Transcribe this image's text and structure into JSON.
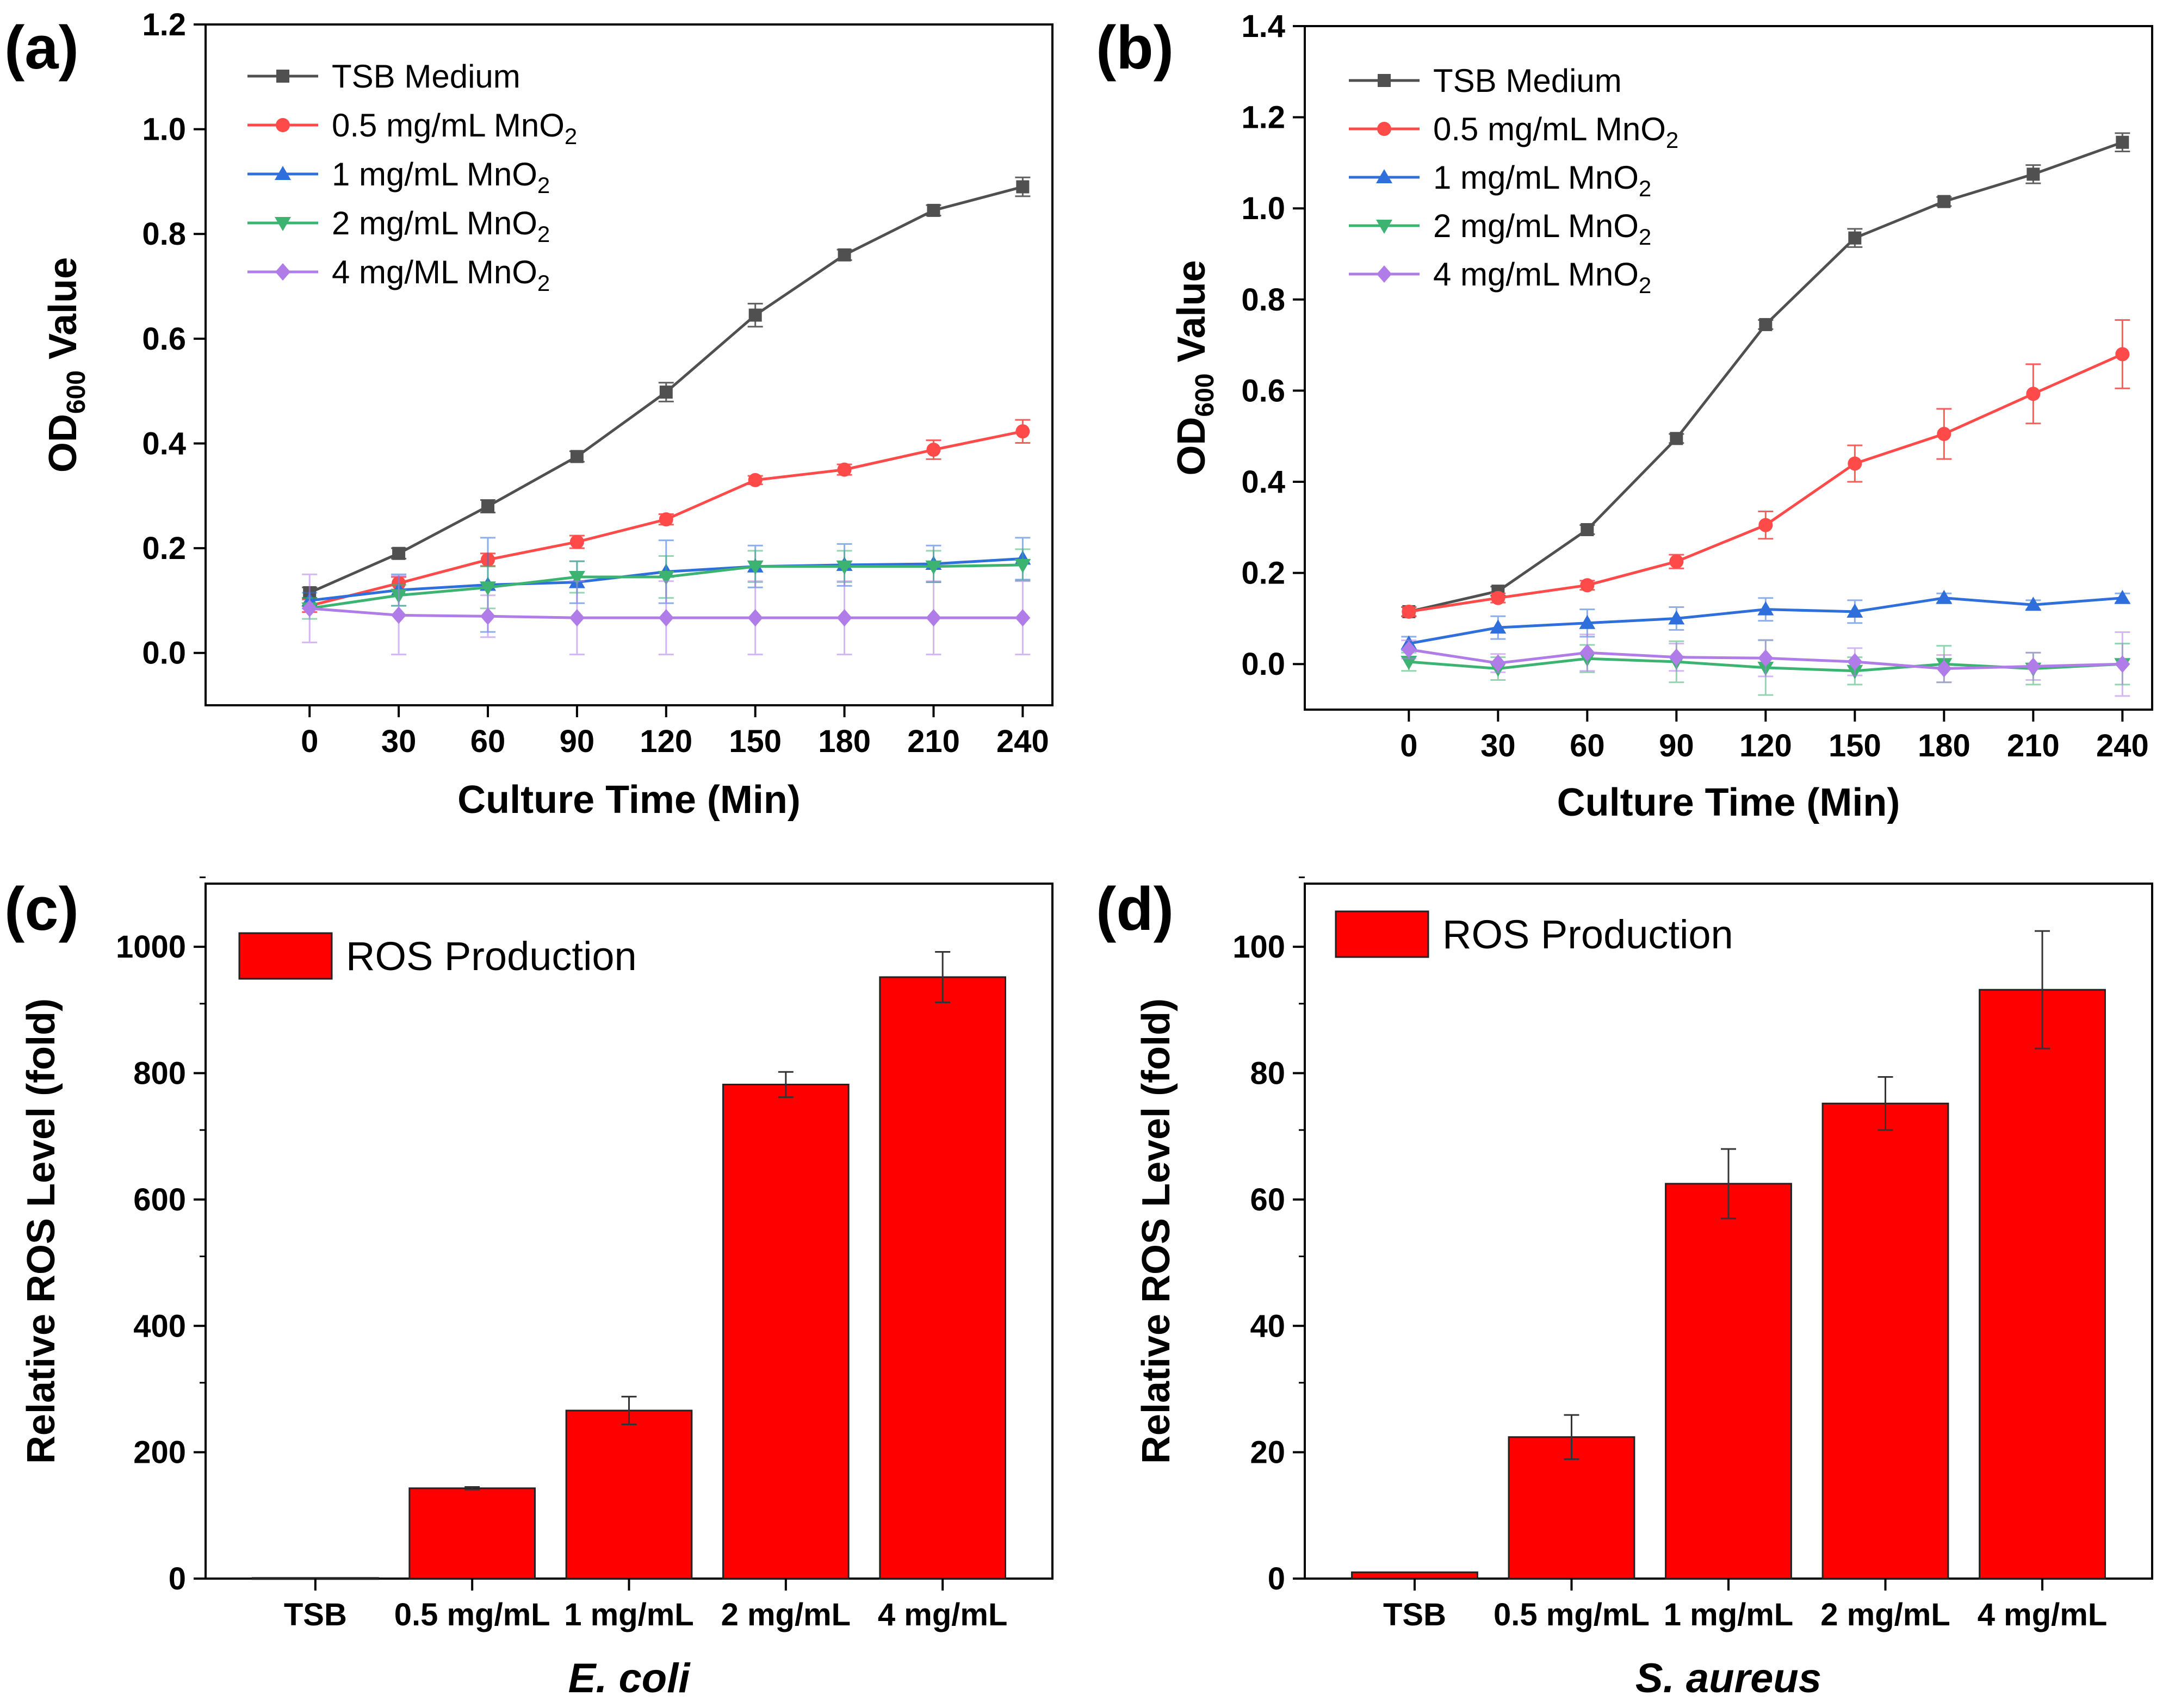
{
  "figure": {
    "panel_labels": [
      "(a)",
      "(b)",
      "(c)",
      "(d)"
    ]
  },
  "chart_data": [
    {
      "panel": "(a)",
      "type": "line",
      "xlabel": "Culture Time (Min)",
      "ylabel_main": "OD",
      "ylabel_sub": "600",
      "ylabel_tail": " Value",
      "x": [
        0,
        30,
        60,
        90,
        120,
        150,
        180,
        210,
        240
      ],
      "xlim": [
        -35,
        250
      ],
      "ylim": [
        -0.1,
        1.2
      ],
      "yticks": [
        0.0,
        0.2,
        0.4,
        0.6,
        0.8,
        1.0,
        1.2
      ],
      "ytick_labels": [
        "0.0",
        "0.2",
        "0.4",
        "0.6",
        "0.8",
        "1.0",
        "1.2"
      ],
      "legend_position": "top-left",
      "series": [
        {
          "legend_main": "TSB Medium",
          "legend_sub": "",
          "color": "#505050",
          "marker": "square",
          "values": [
            0.115,
            0.19,
            0.28,
            0.375,
            0.498,
            0.645,
            0.76,
            0.845,
            0.89
          ],
          "errors": [
            0.01,
            0.01,
            0.012,
            0.01,
            0.018,
            0.022,
            0.01,
            0.01,
            0.018
          ]
        },
        {
          "legend_main": "0.5 mg/mL MnO",
          "legend_sub": "2",
          "color": "#ff4a4a",
          "marker": "circle",
          "values": [
            0.09,
            0.133,
            0.178,
            0.212,
            0.255,
            0.33,
            0.35,
            0.388,
            0.423
          ],
          "errors": [
            0.012,
            0.012,
            0.012,
            0.012,
            0.01,
            0.008,
            0.01,
            0.018,
            0.022
          ]
        },
        {
          "legend_main": "1 mg/mL MnO",
          "legend_sub": "2",
          "color": "#2f6fdc",
          "marker": "triangle-up",
          "values": [
            0.1,
            0.12,
            0.13,
            0.135,
            0.155,
            0.165,
            0.168,
            0.17,
            0.18
          ],
          "errors": [
            0.015,
            0.03,
            0.09,
            0.04,
            0.06,
            0.04,
            0.04,
            0.035,
            0.04
          ]
        },
        {
          "legend_main": "2 mg/mL MnO",
          "legend_sub": "2",
          "color": "#3cb371",
          "marker": "triangle-down",
          "values": [
            0.085,
            0.11,
            0.125,
            0.145,
            0.145,
            0.165,
            0.165,
            0.165,
            0.168
          ],
          "errors": [
            0.02,
            0.02,
            0.04,
            0.03,
            0.04,
            0.03,
            0.03,
            0.03,
            0.03
          ]
        },
        {
          "legend_main": "4 mg/ML MnO",
          "legend_sub": "2",
          "color": "#b07de8",
          "marker": "diamond",
          "values": [
            0.085,
            0.072,
            0.07,
            0.067,
            0.067,
            0.067,
            0.067,
            0.067,
            0.067
          ],
          "errors": [
            0.065,
            0.075,
            0.04,
            0.07,
            0.07,
            0.07,
            0.07,
            0.07,
            0.07
          ]
        }
      ]
    },
    {
      "panel": "(b)",
      "type": "line",
      "xlabel": "Culture Time (Min)",
      "ylabel_main": "OD",
      "ylabel_sub": "600",
      "ylabel_tail": " Value",
      "x": [
        0,
        30,
        60,
        90,
        120,
        150,
        180,
        210,
        240
      ],
      "xlim": [
        -35,
        250
      ],
      "ylim": [
        -0.1,
        1.4
      ],
      "yticks": [
        0.0,
        0.2,
        0.4,
        0.6,
        0.8,
        1.0,
        1.2,
        1.4
      ],
      "ytick_labels": [
        "0.0",
        "0.2",
        "0.4",
        "0.6",
        "0.8",
        "1.0",
        "1.2",
        "1.4"
      ],
      "legend_position": "top-left",
      "series": [
        {
          "legend_main": "TSB Medium",
          "legend_sub": "",
          "color": "#505050",
          "marker": "square",
          "values": [
            0.115,
            0.16,
            0.295,
            0.495,
            0.745,
            0.935,
            1.015,
            1.075,
            1.145
          ],
          "errors": [
            0.01,
            0.01,
            0.01,
            0.01,
            0.01,
            0.02,
            0.01,
            0.02,
            0.02
          ]
        },
        {
          "legend_main": "0.5 mg/mL MnO",
          "legend_sub": "2",
          "color": "#ff4a4a",
          "marker": "circle",
          "values": [
            0.115,
            0.145,
            0.173,
            0.225,
            0.305,
            0.44,
            0.505,
            0.593,
            0.68
          ],
          "errors": [
            0.01,
            0.01,
            0.01,
            0.015,
            0.03,
            0.04,
            0.055,
            0.065,
            0.075
          ]
        },
        {
          "legend_main": "1 mg/mL MnO",
          "legend_sub": "2",
          "color": "#2f6fdc",
          "marker": "triangle-up",
          "values": [
            0.045,
            0.08,
            0.09,
            0.1,
            0.12,
            0.115,
            0.145,
            0.13,
            0.145
          ],
          "errors": [
            0.015,
            0.025,
            0.03,
            0.025,
            0.025,
            0.025,
            0.01,
            0.01,
            0.01
          ]
        },
        {
          "legend_main": "2 mg/mL MnO",
          "legend_sub": "2",
          "color": "#3cb371",
          "marker": "triangle-down",
          "values": [
            0.005,
            -0.01,
            0.012,
            0.005,
            -0.008,
            -0.015,
            0.0,
            -0.01,
            0.0
          ],
          "errors": [
            0.02,
            0.025,
            0.03,
            0.045,
            0.06,
            0.03,
            0.04,
            0.035,
            0.045
          ]
        },
        {
          "legend_main": "4 mg/mL MnO",
          "legend_sub": "2",
          "color": "#b07de8",
          "marker": "diamond",
          "values": [
            0.032,
            0.002,
            0.025,
            0.015,
            0.013,
            0.005,
            -0.01,
            -0.005,
            0.0
          ],
          "errors": [
            0.02,
            0.02,
            0.04,
            0.03,
            0.04,
            0.03,
            0.03,
            0.03,
            0.07
          ]
        }
      ]
    },
    {
      "panel": "(c)",
      "type": "bar",
      "xlabel": "E. coli",
      "ylabel": "Relative ROS Level (fold)",
      "categories": [
        "TSB",
        "0.5 mg/mL",
        "1 mg/mL",
        "2 mg/mL",
        "4 mg/mL"
      ],
      "values": [
        1,
        143,
        266,
        782,
        952
      ],
      "errors": [
        0,
        2,
        22,
        20,
        40
      ],
      "ylim": [
        0,
        1100
      ],
      "yticks": [
        0,
        200,
        400,
        600,
        800,
        1000
      ],
      "ytick_labels": [
        "0",
        "200",
        "400",
        "600",
        "800",
        "1000"
      ],
      "legend": "ROS Production",
      "legend_position": "top-left",
      "color": "#ff0000"
    },
    {
      "panel": "(d)",
      "type": "bar",
      "xlabel": "S. aureus",
      "ylabel": "Relative ROS Level (fold)",
      "categories": [
        "TSB",
        "0.5 mg/mL",
        "1 mg/mL",
        "2 mg/mL",
        "4 mg/mL"
      ],
      "values": [
        1,
        22.4,
        62.5,
        75.2,
        93.2
      ],
      "errors": [
        0,
        3.5,
        5.5,
        4.2,
        9.3
      ],
      "ylim": [
        0,
        110
      ],
      "yticks": [
        0,
        20,
        40,
        60,
        80,
        100
      ],
      "ytick_labels": [
        "0",
        "20",
        "40",
        "60",
        "80",
        "100"
      ],
      "legend": "ROS Production",
      "legend_position": "top-left",
      "color": "#ff0000"
    }
  ]
}
